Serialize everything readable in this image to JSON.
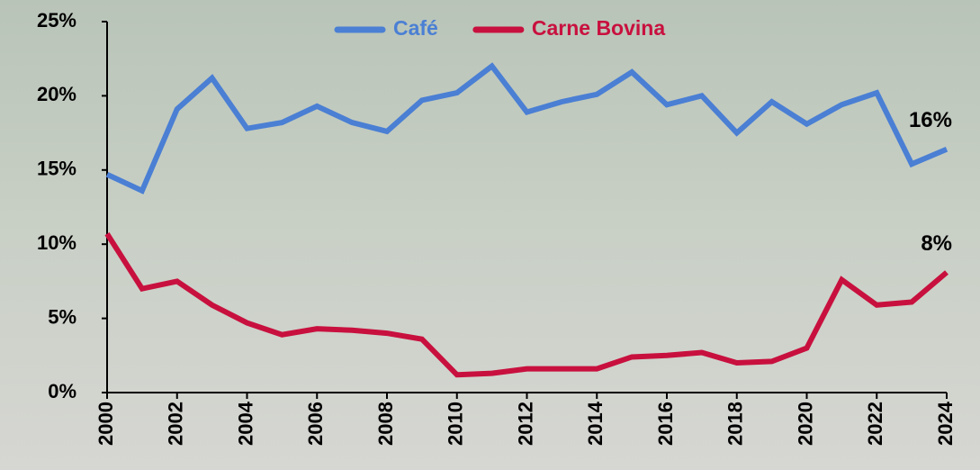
{
  "chart_data": {
    "type": "line",
    "x": [
      2000,
      2001,
      2002,
      2003,
      2004,
      2005,
      2006,
      2007,
      2008,
      2009,
      2010,
      2011,
      2012,
      2013,
      2014,
      2015,
      2016,
      2017,
      2018,
      2019,
      2020,
      2021,
      2022,
      2023,
      2024
    ],
    "xlim": [
      2000,
      2024
    ],
    "xticks": [
      2000,
      2002,
      2004,
      2006,
      2008,
      2010,
      2012,
      2014,
      2016,
      2018,
      2020,
      2022,
      2024
    ],
    "ylim": [
      0,
      25
    ],
    "yticks": [
      {
        "value": 0,
        "label": "0%"
      },
      {
        "value": 5,
        "label": "5%"
      },
      {
        "value": 10,
        "label": "10%"
      },
      {
        "value": 15,
        "label": "15%"
      },
      {
        "value": 20,
        "label": "20%"
      },
      {
        "value": 25,
        "label": "25%"
      }
    ],
    "grid": false,
    "legend": "top",
    "series": [
      {
        "name": "Café",
        "color": "#4a7fd4",
        "values": [
          14.7,
          13.6,
          19.1,
          21.2,
          17.8,
          18.2,
          19.3,
          18.2,
          17.6,
          19.7,
          20.2,
          22.0,
          18.9,
          19.6,
          20.1,
          21.6,
          19.4,
          20.0,
          17.5,
          19.6,
          18.1,
          19.4,
          20.2,
          15.4,
          16.4
        ],
        "value_labels": [
          null,
          null,
          null,
          null,
          null,
          null,
          null,
          null,
          null,
          null,
          null,
          null,
          null,
          null,
          null,
          null,
          null,
          null,
          null,
          null,
          null,
          null,
          null,
          null,
          "16%"
        ]
      },
      {
        "name": "Carne Bovina",
        "color": "#c8103e",
        "values": [
          10.7,
          7.0,
          7.5,
          5.9,
          4.7,
          3.9,
          4.3,
          4.2,
          4.0,
          3.6,
          1.2,
          1.3,
          1.6,
          1.6,
          1.6,
          2.4,
          2.5,
          2.7,
          2.0,
          2.1,
          3.0,
          7.6,
          5.9,
          6.1,
          8.1
        ],
        "value_labels": [
          null,
          null,
          null,
          null,
          null,
          null,
          null,
          null,
          null,
          null,
          null,
          null,
          null,
          null,
          null,
          null,
          null,
          null,
          null,
          null,
          null,
          null,
          null,
          null,
          "8%"
        ]
      }
    ]
  }
}
